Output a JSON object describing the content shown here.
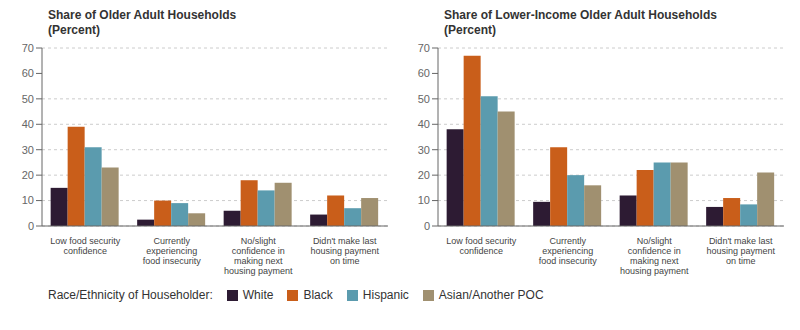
{
  "chart_data": [
    {
      "type": "bar",
      "title": "Share of Older Adult Households\n(Percent)",
      "categories": [
        "Low food security\nconfidence",
        "Currently\nexperiencing\nfood insecurity",
        "No/slight\nconfidence in\nmaking next\nhousing payment",
        "Didn't make last\nhousing payment\non time"
      ],
      "series": [
        {
          "name": "White",
          "color": "#2d1b33",
          "values": [
            15,
            2.5,
            6,
            4.5
          ]
        },
        {
          "name": "Black",
          "color": "#c95e1a",
          "values": [
            39,
            10,
            18,
            12
          ]
        },
        {
          "name": "Hispanic",
          "color": "#5b9bae",
          "values": [
            31,
            9,
            14,
            7
          ]
        },
        {
          "name": "Asian/Another POC",
          "color": "#a09070",
          "values": [
            23,
            5,
            17,
            11
          ]
        }
      ],
      "ylim": [
        0,
        70
      ],
      "yticks": [
        0,
        10,
        20,
        30,
        40,
        50,
        60,
        70
      ],
      "grid": true,
      "legend": "bottom",
      "annotations": [
        "Race/Ethnicity of Householder:"
      ]
    },
    {
      "type": "bar",
      "title": "Share of Lower-Income Older Adult Households\n(Percent)",
      "categories": [
        "Low food security\nconfidence",
        "Currently\nexperiencing\nfood insecurity",
        "No/slight\nconfidence in\nmaking next\nhousing payment",
        "Didn't make last\nhousing payment\non time"
      ],
      "series": [
        {
          "name": "White",
          "color": "#2d1b33",
          "values": [
            38,
            9.5,
            12,
            7.5
          ]
        },
        {
          "name": "Black",
          "color": "#c95e1a",
          "values": [
            67,
            31,
            22,
            11
          ]
        },
        {
          "name": "Hispanic",
          "color": "#5b9bae",
          "values": [
            51,
            20,
            25,
            8.5
          ]
        },
        {
          "name": "Asian/Another POC",
          "color": "#a09070",
          "values": [
            45,
            16,
            25,
            21
          ]
        }
      ],
      "ylim": [
        0,
        70
      ],
      "yticks": [
        0,
        10,
        20,
        30,
        40,
        50,
        60,
        70
      ],
      "grid": true
    }
  ]
}
